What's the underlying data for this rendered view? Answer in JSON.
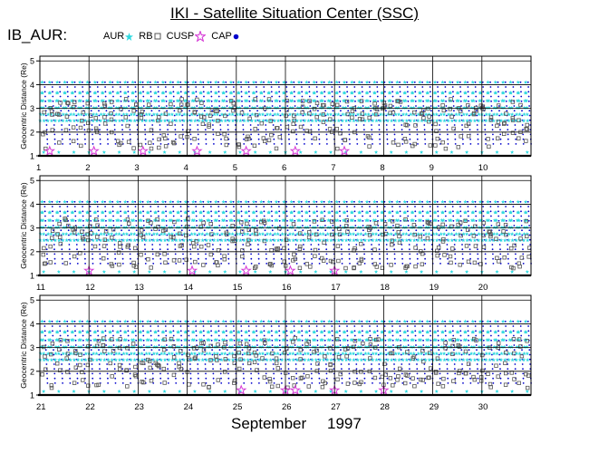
{
  "header": {
    "title": "IKI - Satellite Situation Center (SSC)",
    "satellite": "IB_AUR:"
  },
  "legend": [
    {
      "label": "AUR",
      "symbol": "star",
      "color": "#2fd9e0"
    },
    {
      "label": "RB",
      "symbol": "square",
      "color": "#555555"
    },
    {
      "label": "CUSP",
      "symbol": "star-outline",
      "color": "#d63ad6"
    },
    {
      "label": "CAP",
      "symbol": "dot",
      "color": "#0000cc"
    }
  ],
  "footer": {
    "month": "September",
    "year": "1997"
  },
  "chart_data": {
    "type": "scatter",
    "ylabel": "Geocentric Distance (Re)",
    "ylim": [
      1,
      5.2
    ],
    "yticks": [
      1,
      2,
      3,
      4,
      5
    ],
    "panels": [
      {
        "days": [
          "1",
          "2",
          "3",
          "4",
          "5",
          "6",
          "7",
          "8",
          "9",
          "10"
        ],
        "cusp_events": [
          1.2,
          2.1,
          3.1,
          4.2,
          5.2,
          6.2,
          7.2
        ]
      },
      {
        "days": [
          "11",
          "12",
          "13",
          "14",
          "15",
          "16",
          "17",
          "18",
          "19",
          "20"
        ],
        "cusp_events": [
          12.0,
          14.1,
          15.2,
          16.1,
          17.0
        ]
      },
      {
        "days": [
          "21",
          "22",
          "23",
          "24",
          "25",
          "26",
          "27",
          "28",
          "29",
          "30"
        ],
        "cusp_events": [
          25.1,
          26.0,
          26.2,
          27.0,
          28.0
        ]
      }
    ],
    "orbit_apogee_re": 4.1,
    "orbits_per_day": 6.5,
    "series": [
      {
        "name": "AUR",
        "color": "#2fd9e0"
      },
      {
        "name": "RB",
        "color": "#555555"
      },
      {
        "name": "CUSP",
        "color": "#d63ad6"
      },
      {
        "name": "CAP",
        "color": "#0000cc"
      }
    ],
    "grid": true,
    "legend_position": "top-left"
  }
}
